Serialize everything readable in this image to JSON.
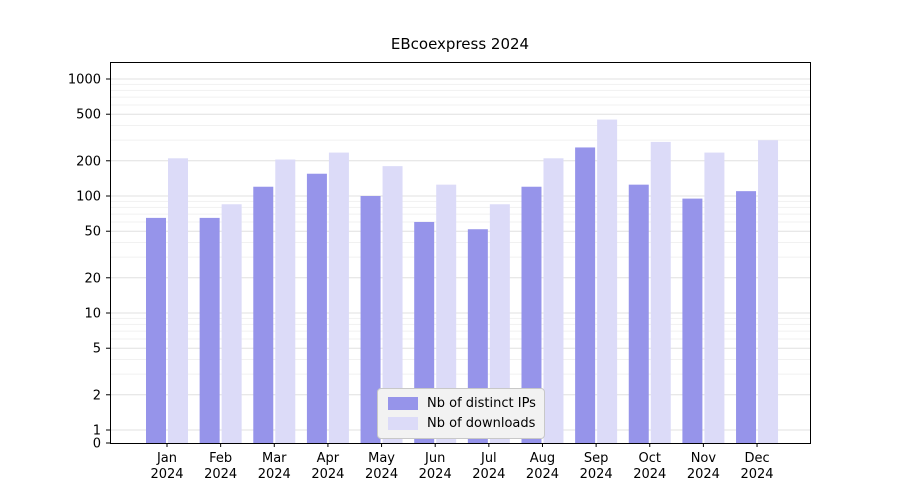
{
  "chart_data": {
    "type": "bar",
    "title": "EBcoexpress 2024",
    "year": "2024",
    "categories": [
      "Jan",
      "Feb",
      "Mar",
      "Apr",
      "May",
      "Jun",
      "Jul",
      "Aug",
      "Sep",
      "Oct",
      "Nov",
      "Dec"
    ],
    "series": [
      {
        "name": "Nb of distinct IPs",
        "color": "#9694ea",
        "values": [
          65,
          65,
          120,
          155,
          100,
          60,
          52,
          120,
          260,
          125,
          95,
          110
        ]
      },
      {
        "name": "Nb of downloads",
        "color": "#dcdbf8",
        "values": [
          210,
          85,
          205,
          235,
          180,
          125,
          85,
          210,
          450,
          290,
          235,
          300
        ]
      }
    ],
    "y_ticks": [
      0,
      1,
      2,
      5,
      10,
      20,
      50,
      100,
      200,
      500,
      1000
    ],
    "y_scale": "log",
    "ylim": [
      0,
      1000
    ],
    "grid": true,
    "legend_position": "lower center",
    "xlabel": "",
    "ylabel": ""
  }
}
